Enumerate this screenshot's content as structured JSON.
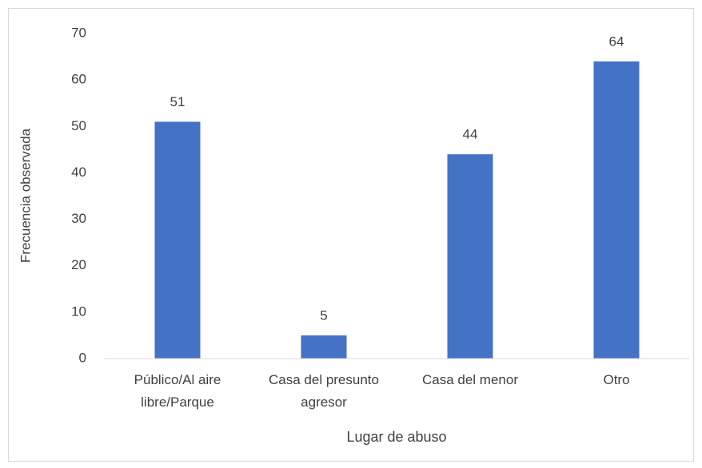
{
  "chart_data": {
    "type": "bar",
    "x_label": "Lugar de abuso",
    "y_label": "Frecuencia observada",
    "categories": [
      "Público/Al aire libre/Parque",
      "Casa del presunto agresor",
      "Casa del menor",
      "Otro"
    ],
    "values": [
      51,
      5,
      44,
      64
    ],
    "color": "#4472c4",
    "ylim": [
      0,
      70
    ],
    "yticks": [
      0,
      10,
      20,
      30,
      40,
      50,
      60,
      70
    ],
    "grid": false
  }
}
